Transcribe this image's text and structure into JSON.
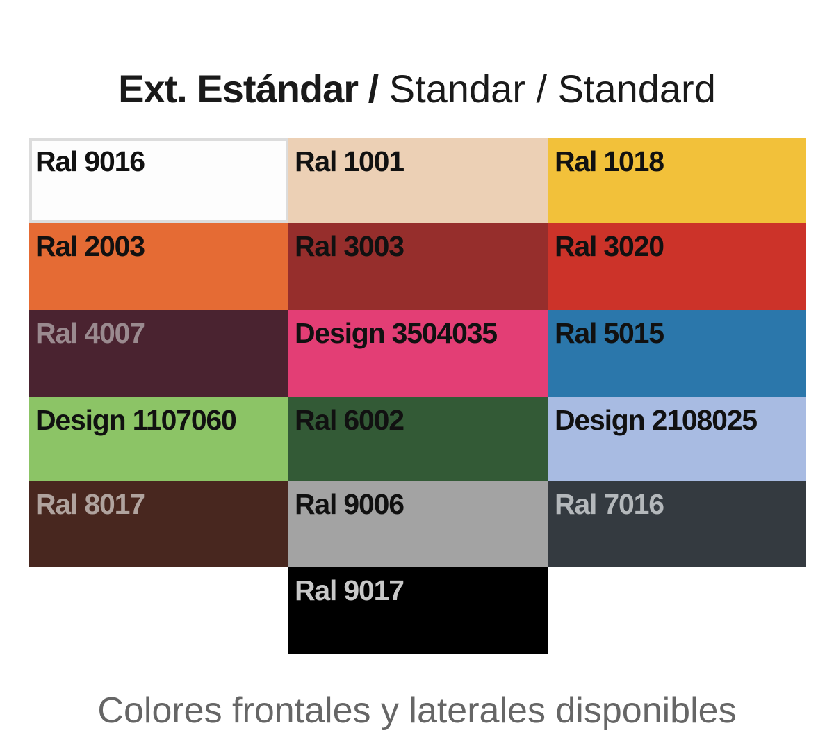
{
  "header": {
    "title_bold": "Ext. Estándar /",
    "title_regular": "Standar / Standard"
  },
  "swatches": [
    {
      "label": "Ral 9016",
      "color": "#fdfdfd",
      "text_color": "#111111",
      "border": "#dcdcdc"
    },
    {
      "label": "Ral 1001",
      "color": "#ecd0b5",
      "text_color": "#111111"
    },
    {
      "label": "Ral 1018",
      "color": "#f2c13a",
      "text_color": "#111111"
    },
    {
      "label": "Ral 2003",
      "color": "#e56b34",
      "text_color": "#111111"
    },
    {
      "label": "Ral 3003",
      "color": "#962e2c",
      "text_color": "#111111"
    },
    {
      "label": "Ral 3020",
      "color": "#cc3329",
      "text_color": "#111111"
    },
    {
      "label": "Ral 4007",
      "color": "#4a2330",
      "text_color": "#9a8a8f"
    },
    {
      "label": "Design 3504035",
      "color": "#e33e75",
      "text_color": "#111111"
    },
    {
      "label": "Ral 5015",
      "color": "#2b77ab",
      "text_color": "#111111"
    },
    {
      "label": "Design 1107060",
      "color": "#8cc466",
      "text_color": "#111111"
    },
    {
      "label": "Ral 6002",
      "color": "#335a36",
      "text_color": "#111111"
    },
    {
      "label": "Design 2108025",
      "color": "#a8bbe2",
      "text_color": "#111111"
    },
    {
      "label": "Ral 8017",
      "color": "#48271f",
      "text_color": "#b0a39e"
    },
    {
      "label": "Ral 9006",
      "color": "#a3a3a3",
      "text_color": "#111111"
    },
    {
      "label": "Ral 7016",
      "color": "#343a40",
      "text_color": "#b4b8bb"
    },
    {
      "label": "Ral 9017",
      "color": "#000000",
      "text_color": "#c8c8c8"
    }
  ],
  "caption": "Colores frontales y laterales disponibles"
}
